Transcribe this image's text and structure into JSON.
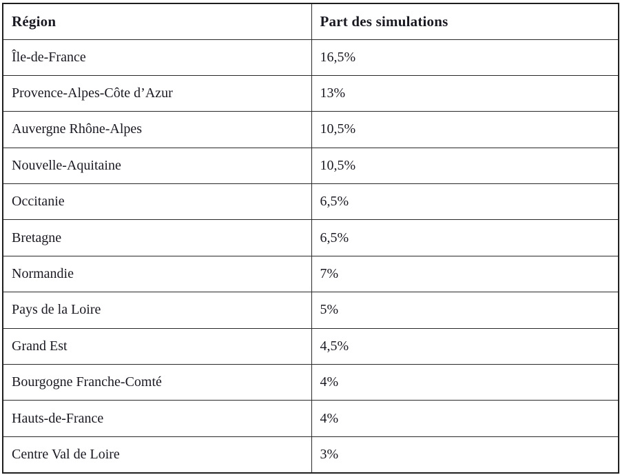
{
  "colors": {
    "background": "#ffffff",
    "text": "#191922",
    "border": "#272727"
  },
  "table": {
    "columns": [
      {
        "label": "Région"
      },
      {
        "label": "Part des simulations"
      }
    ],
    "rows": [
      {
        "region": "Île-de-France",
        "share": "16,5%"
      },
      {
        "region": "Provence-Alpes-Côte d’Azur",
        "share": "13%"
      },
      {
        "region": "Auvergne Rhône-Alpes",
        "share": "10,5%"
      },
      {
        "region": "Nouvelle-Aquitaine",
        "share": "10,5%"
      },
      {
        "region": "Occitanie",
        "share": "6,5%"
      },
      {
        "region": "Bretagne",
        "share": "6,5%"
      },
      {
        "region": "Normandie",
        "share": "7%"
      },
      {
        "region": "Pays de la Loire",
        "share": "5%"
      },
      {
        "region": "Grand Est",
        "share": "4,5%"
      },
      {
        "region": "Bourgogne Franche-Comté",
        "share": "4%"
      },
      {
        "region": "Hauts-de-France",
        "share": "4%"
      },
      {
        "region": "Centre Val de Loire",
        "share": "3%"
      }
    ]
  }
}
